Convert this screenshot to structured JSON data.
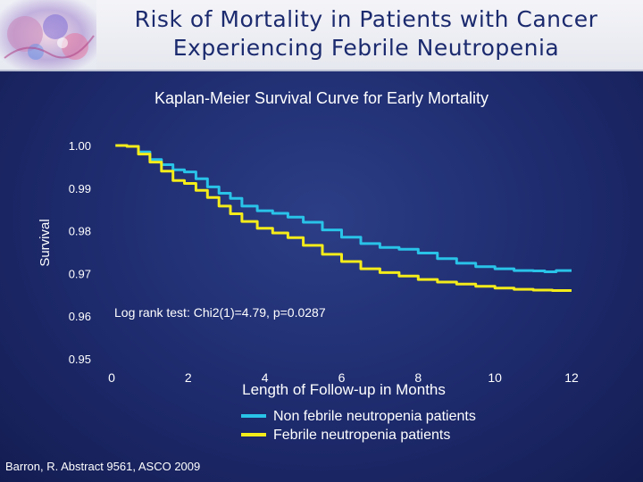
{
  "slide": {
    "title_line1": "Risk of Mortality in Patients with Cancer",
    "title_line2": "Experiencing Febrile Neutropenia",
    "subtitle": "Kaplan-Meier Survival Curve for Early Mortality",
    "citation": "Barron, R.  Abstract 9561, ASCO 2009"
  },
  "colors": {
    "background": "#1d2a6c",
    "non_febrile": "#29c3e8",
    "febrile": "#f4ec1a",
    "title": "#1b2a6e"
  },
  "chart_data": {
    "type": "line",
    "title": "Kaplan-Meier Survival Curve for Early Mortality",
    "xlabel": "Length of Follow-up in Months",
    "ylabel": "Survival",
    "xlim": [
      0,
      12
    ],
    "ylim": [
      0.95,
      1.0
    ],
    "x_ticks": [
      0,
      2,
      4,
      6,
      8,
      10,
      12
    ],
    "x_tick_labels": [
      "0",
      "2",
      "4",
      "6",
      "8",
      "10",
      "12"
    ],
    "y_ticks": [
      1.0,
      0.99,
      0.98,
      0.97,
      0.96,
      0.95
    ],
    "y_tick_labels": [
      "1.00",
      "0.99",
      "0.98",
      "0.97",
      "0.96",
      "0.95"
    ],
    "annotation": "Log rank test: Chi2(1)=4.79, p=0.0287",
    "legend_position": "bottom-center",
    "series": [
      {
        "name": "Non febrile neutropenia patients",
        "color": "#29c3e8",
        "points": [
          [
            0.1,
            1.0
          ],
          [
            0.4,
            0.9998
          ],
          [
            0.7,
            0.9985
          ],
          [
            1.0,
            0.9967
          ],
          [
            1.3,
            0.9955
          ],
          [
            1.6,
            0.9943
          ],
          [
            1.9,
            0.9938
          ],
          [
            2.2,
            0.9922
          ],
          [
            2.5,
            0.9903
          ],
          [
            2.8,
            0.9888
          ],
          [
            3.1,
            0.9876
          ],
          [
            3.4,
            0.9858
          ],
          [
            3.8,
            0.9847
          ],
          [
            4.2,
            0.9841
          ],
          [
            4.6,
            0.9832
          ],
          [
            5.0,
            0.982
          ],
          [
            5.5,
            0.9802
          ],
          [
            6.0,
            0.9785
          ],
          [
            6.5,
            0.977
          ],
          [
            7.0,
            0.9761
          ],
          [
            7.5,
            0.9757
          ],
          [
            8.0,
            0.9748
          ],
          [
            8.5,
            0.9735
          ],
          [
            9.0,
            0.9724
          ],
          [
            9.5,
            0.9716
          ],
          [
            10.0,
            0.9711
          ],
          [
            10.5,
            0.9707
          ],
          [
            11.0,
            0.9706
          ],
          [
            11.3,
            0.9704
          ],
          [
            11.6,
            0.9707
          ],
          [
            12.0,
            0.9707
          ]
        ]
      },
      {
        "name": "Febrile neutropenia patients",
        "color": "#f4ec1a",
        "points": [
          [
            0.1,
            1.0
          ],
          [
            0.4,
            0.9998
          ],
          [
            0.7,
            0.998
          ],
          [
            1.0,
            0.9961
          ],
          [
            1.3,
            0.994
          ],
          [
            1.6,
            0.9918
          ],
          [
            1.9,
            0.9911
          ],
          [
            2.2,
            0.9895
          ],
          [
            2.5,
            0.9878
          ],
          [
            2.8,
            0.9858
          ],
          [
            3.1,
            0.984
          ],
          [
            3.4,
            0.9822
          ],
          [
            3.8,
            0.9806
          ],
          [
            4.2,
            0.9795
          ],
          [
            4.6,
            0.9784
          ],
          [
            5.0,
            0.9766
          ],
          [
            5.5,
            0.9745
          ],
          [
            6.0,
            0.9728
          ],
          [
            6.5,
            0.9711
          ],
          [
            7.0,
            0.9702
          ],
          [
            7.5,
            0.9694
          ],
          [
            8.0,
            0.9686
          ],
          [
            8.5,
            0.968
          ],
          [
            9.0,
            0.9675
          ],
          [
            9.5,
            0.967
          ],
          [
            10.0,
            0.9666
          ],
          [
            10.5,
            0.9663
          ],
          [
            11.0,
            0.9661
          ],
          [
            11.5,
            0.966
          ],
          [
            12.0,
            0.966
          ]
        ]
      }
    ]
  }
}
